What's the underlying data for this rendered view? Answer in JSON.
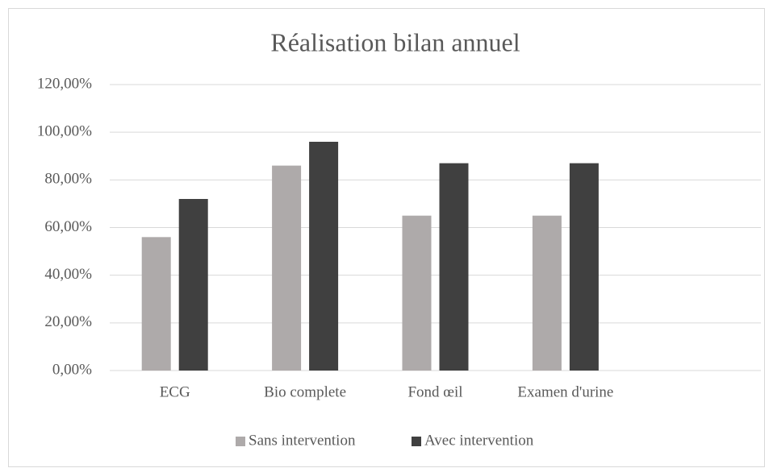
{
  "chart_data": {
    "type": "bar",
    "title": "Réalisation bilan annuel",
    "categories": [
      "ECG",
      "Bio complete",
      "Fond œil",
      "Examen d'urine",
      null
    ],
    "series": [
      {
        "name": "Sans intervention",
        "color": "#aeaaaa",
        "values": [
          56,
          86,
          65,
          65,
          null
        ]
      },
      {
        "name": "Avec intervention",
        "color": "#404040",
        "values": [
          72,
          96,
          87,
          87,
          null
        ]
      }
    ],
    "ylim": [
      0,
      120
    ],
    "yticks": [
      {
        "value": 0,
        "label": "0,00%"
      },
      {
        "value": 20,
        "label": "20,00%"
      },
      {
        "value": 40,
        "label": "40,00%"
      },
      {
        "value": 60,
        "label": "60,00%"
      },
      {
        "value": 80,
        "label": "80,00%"
      },
      {
        "value": 100,
        "label": "100,00%"
      },
      {
        "value": 120,
        "label": "120,00%"
      }
    ],
    "grid": true,
    "legend": "bottom"
  }
}
